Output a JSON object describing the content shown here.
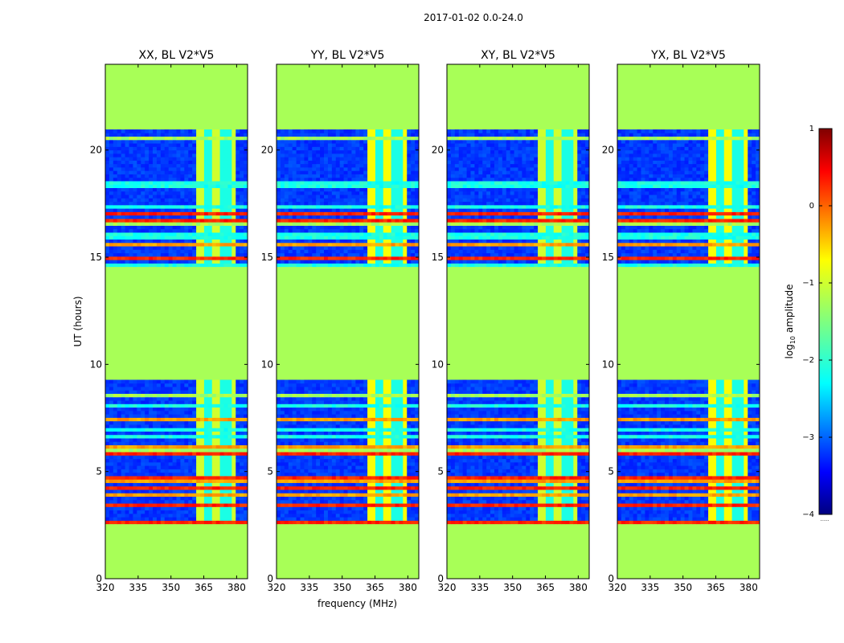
{
  "figure": {
    "suptitle": "2017-01-02 0.0-24.0"
  },
  "chart_data": {
    "type": "heatmap",
    "suptitle": "2017-01-02 0.0-24.0",
    "xlabel": "frequency (MHz)",
    "ylabel": "UT (hours)",
    "xlim": [
      320,
      385
    ],
    "ylim": [
      0,
      24
    ],
    "x_ticks": [
      320,
      335,
      350,
      365,
      380
    ],
    "y_ticks": [
      0,
      5,
      10,
      15,
      20
    ],
    "panels": [
      {
        "title": "XX, BL V2*V5",
        "xlabel": ""
      },
      {
        "title": "YY, BL V2*V5",
        "xlabel": "frequency (MHz)"
      },
      {
        "title": "XY, BL V2*V5",
        "xlabel": ""
      },
      {
        "title": "YX, BL V2*V5",
        "xlabel": ""
      }
    ],
    "observed_intervals_ut": [
      [
        2.5,
        9.2
      ],
      [
        14.5,
        21.0
      ]
    ],
    "flagged_fill_log10_amplitude": -1.3,
    "bright_band_mhz": [
      361,
      380
    ],
    "colorbar": {
      "label_prefix": "log",
      "label_sub": "10",
      "label_suffix": " amplitude",
      "min": -4,
      "max": 1,
      "ticks": [
        1,
        0,
        -1,
        -2,
        -3,
        -4
      ],
      "tick_labels": [
        "1",
        "0",
        "−1",
        "−2",
        "−3",
        "−4"
      ],
      "colormap": "jet",
      "extra_label": "......"
    }
  }
}
